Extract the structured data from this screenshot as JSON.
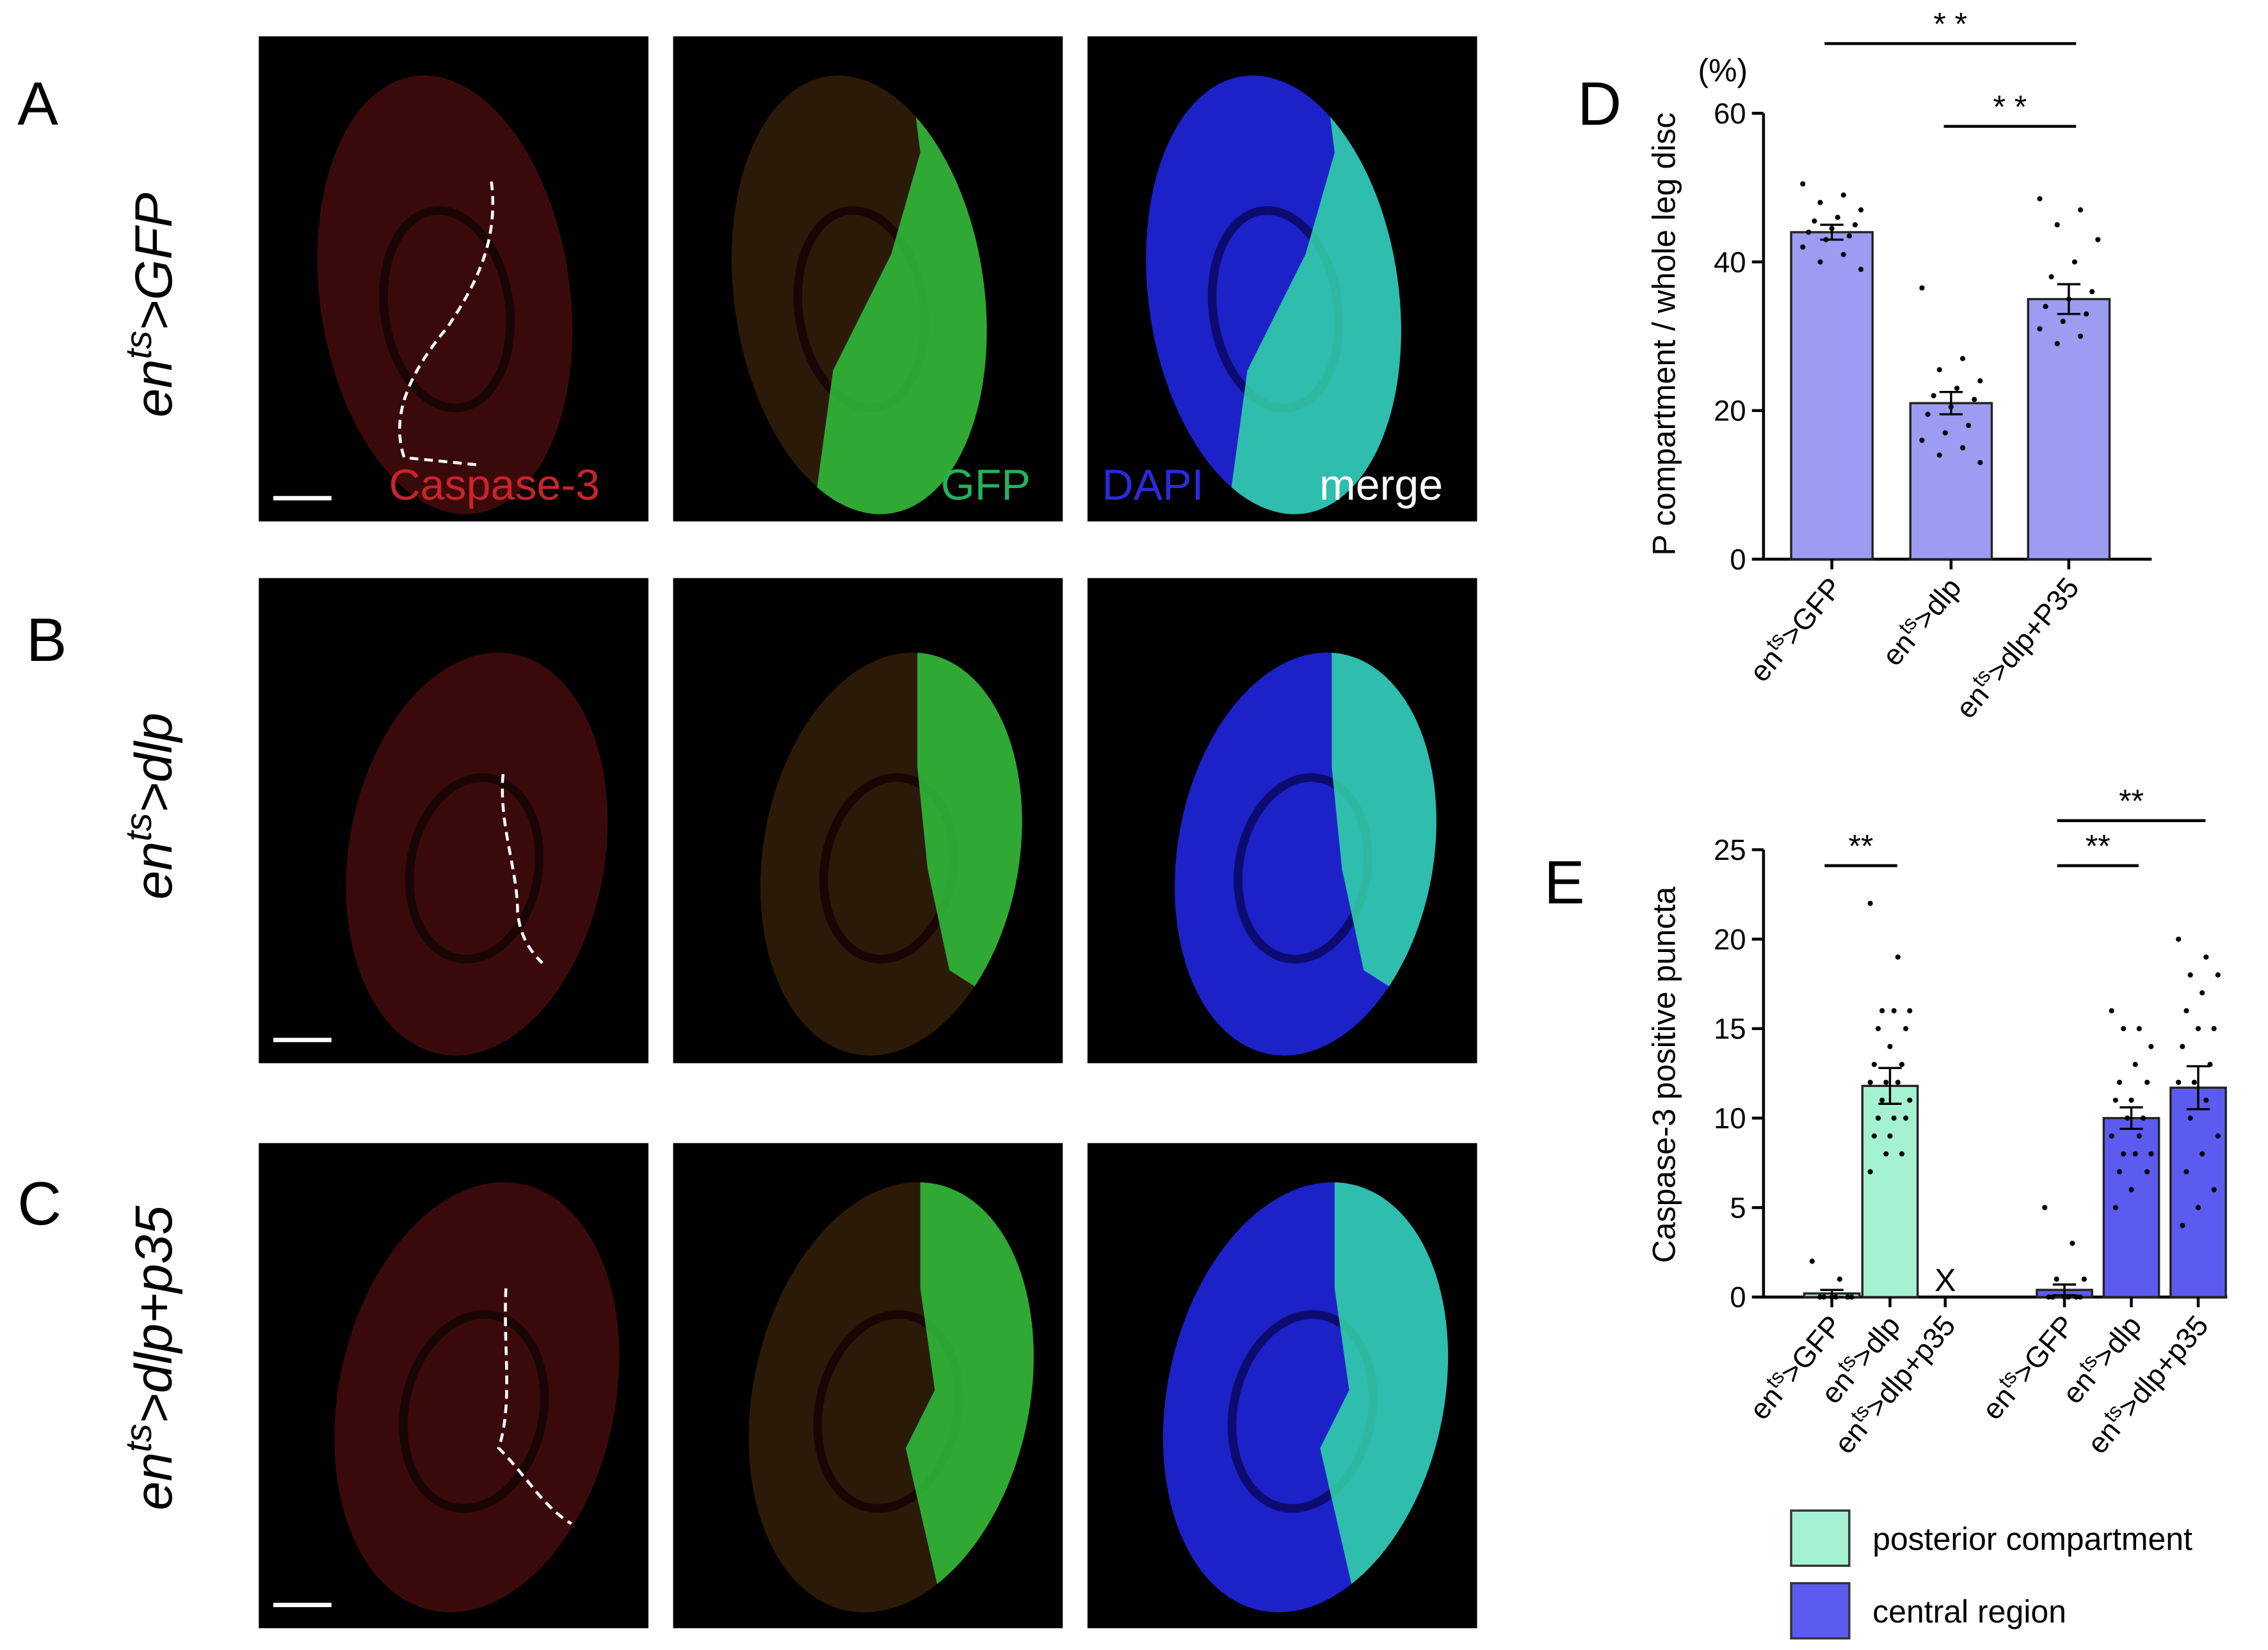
{
  "figure": {
    "rows": [
      {
        "panel": "A",
        "genotype": [
          "en",
          "ts",
          ">GFP"
        ]
      },
      {
        "panel": "B",
        "genotype": [
          "en",
          "ts",
          ">dlp"
        ]
      },
      {
        "panel": "C",
        "genotype": [
          "en",
          "ts",
          ">dlp+p35"
        ]
      }
    ],
    "channels": [
      {
        "name": "Caspase-3",
        "color": "#c8242a"
      },
      {
        "name": "GFP",
        "color": "#22b35c"
      },
      {
        "name": "DAPI",
        "color": "#2a2ae0"
      },
      {
        "name": "merge",
        "color": "#ffffff"
      }
    ]
  },
  "chart_data": [
    {
      "type": "bar",
      "panel": "D",
      "y_unit": "(%)",
      "y_label": "P compartment / whole leg disc",
      "categories": [
        [
          "en",
          "ts",
          ">GFP"
        ],
        [
          "en",
          "ts",
          ">dlp"
        ],
        [
          "en",
          "ts",
          ">dlp+P35"
        ]
      ],
      "values": [
        44,
        21,
        35
      ],
      "errors": [
        1,
        1.5,
        2
      ],
      "points": [
        [
          50.5,
          49,
          48,
          47,
          46,
          45.5,
          45,
          44.5,
          44,
          43.5,
          43,
          42,
          41,
          40,
          39
        ],
        [
          36.5,
          27,
          25.5,
          24,
          23,
          22,
          21.5,
          20.5,
          19.5,
          18,
          17,
          16,
          15,
          14,
          13
        ],
        [
          48.5,
          47,
          45,
          43,
          40,
          38,
          36,
          35,
          34,
          33,
          32,
          31,
          30,
          29
        ]
      ],
      "color": "#9c9cf2",
      "ylim": [
        0,
        60
      ],
      "yticks": [
        0,
        20,
        40,
        60
      ],
      "significance": [
        {
          "from": 0,
          "to": 2,
          "label": "* *"
        },
        {
          "from": 1,
          "to": 2,
          "label": "* *"
        }
      ]
    },
    {
      "type": "grouped_bar",
      "panel": "E",
      "y_label": "Caspase-3 positive puncta",
      "categories": [
        [
          "en",
          "ts",
          ">GFP"
        ],
        [
          "en",
          "ts",
          ">dlp"
        ],
        [
          "en",
          "ts",
          ">dlp+p35"
        ]
      ],
      "series": [
        {
          "name": "posterior compartment",
          "color": "#a4f2d2",
          "values": [
            0.2,
            11.8,
            null
          ],
          "errors": [
            0.2,
            1,
            null
          ],
          "points": [
            [
              2,
              1,
              0,
              0,
              0,
              0,
              0,
              0
            ],
            [
              22,
              19,
              16,
              16,
              16,
              15,
              15,
              14,
              13,
              13,
              12,
              12,
              12,
              11,
              11,
              10,
              10,
              10,
              9,
              9,
              8,
              8,
              7
            ],
            []
          ]
        },
        {
          "name": "central region",
          "color": "#5b5bf0",
          "values": [
            0.4,
            10,
            11.7
          ],
          "errors": [
            0.3,
            0.6,
            1.2
          ],
          "points": [
            [
              5,
              3,
              1,
              1,
              0,
              0,
              0,
              0,
              0,
              0
            ],
            [
              16,
              15,
              15,
              14,
              13,
              12,
              12,
              11,
              11,
              10,
              10,
              9,
              9,
              8,
              8,
              8,
              7,
              7,
              6,
              5
            ],
            [
              20,
              19,
              18,
              18,
              17,
              16,
              15,
              15,
              14,
              13,
              12,
              12,
              11,
              10,
              9,
              8,
              7,
              6,
              5,
              4
            ]
          ]
        }
      ],
      "missing_label": "X",
      "ylim": [
        0,
        25
      ],
      "yticks": [
        0,
        5,
        10,
        15,
        20,
        25
      ],
      "significance": [
        {
          "from": 0,
          "to": 1,
          "label": "**"
        },
        {
          "from": 3,
          "to": 4,
          "label": "**"
        },
        {
          "from": 3,
          "to": 5,
          "label": "**"
        }
      ]
    }
  ]
}
